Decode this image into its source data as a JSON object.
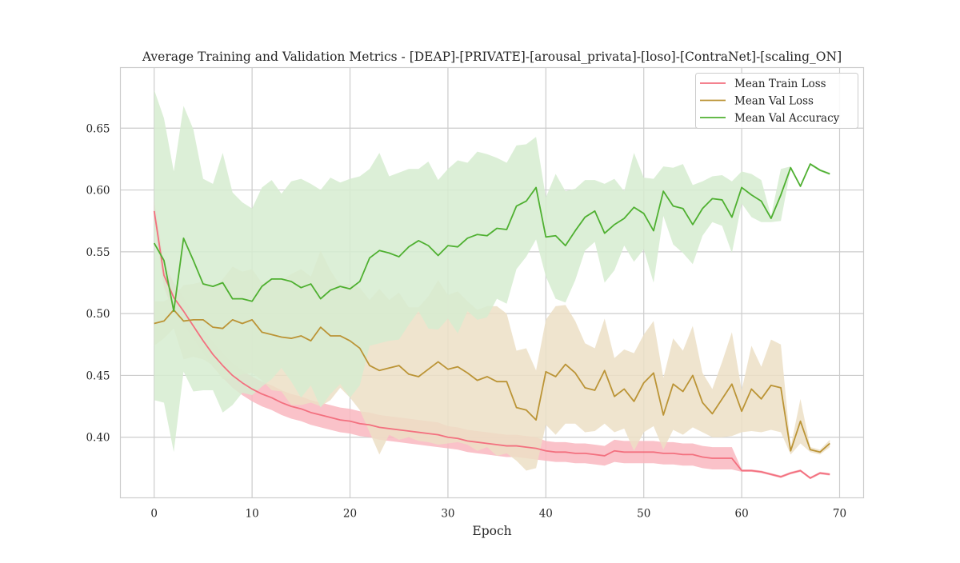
{
  "chart_data": {
    "type": "line",
    "title": "Average Training and Validation Metrics - [DEAP]-[PRIVATE]-[arousal_privata]-[loso]-[ContraNet]-[scaling_ON]",
    "xlabel": "Epoch",
    "ylabel": "",
    "xlim": [
      -3.45,
      72.45
    ],
    "ylim": [
      0.351,
      0.699
    ],
    "xticks": [
      0,
      10,
      20,
      30,
      40,
      50,
      60,
      70
    ],
    "yticks": [
      0.4,
      0.45,
      0.5,
      0.55,
      0.6,
      0.65
    ],
    "xtick_labels": [
      "0",
      "10",
      "20",
      "30",
      "40",
      "50",
      "60",
      "70"
    ],
    "ytick_labels": [
      "0.40",
      "0.45",
      "0.50",
      "0.55",
      "0.60",
      "0.65"
    ],
    "grid": true,
    "legend_position": "top-right",
    "x": [
      0,
      1,
      2,
      3,
      4,
      5,
      6,
      7,
      8,
      9,
      10,
      11,
      12,
      13,
      14,
      15,
      16,
      17,
      18,
      19,
      20,
      21,
      22,
      23,
      24,
      25,
      26,
      27,
      28,
      29,
      30,
      31,
      32,
      33,
      34,
      35,
      36,
      37,
      38,
      39,
      40,
      41,
      42,
      43,
      44,
      45,
      46,
      47,
      48,
      49,
      50,
      51,
      52,
      53,
      54,
      55,
      56,
      57,
      58,
      59,
      60,
      61,
      62,
      63,
      64,
      65,
      66,
      67,
      68,
      69
    ],
    "series": [
      {
        "name": "Mean Train Loss",
        "color": "#f3707f",
        "band_color": "#f9b7c0",
        "values": [
          0.583,
          0.531,
          0.513,
          0.502,
          0.49,
          0.478,
          0.467,
          0.458,
          0.45,
          0.444,
          0.439,
          0.435,
          0.432,
          0.428,
          0.425,
          0.423,
          0.42,
          0.418,
          0.416,
          0.414,
          0.413,
          0.411,
          0.41,
          0.408,
          0.407,
          0.406,
          0.405,
          0.404,
          0.403,
          0.402,
          0.4,
          0.399,
          0.397,
          0.396,
          0.395,
          0.394,
          0.393,
          0.393,
          0.392,
          0.391,
          0.389,
          0.388,
          0.388,
          0.387,
          0.387,
          0.386,
          0.385,
          0.389,
          0.388,
          0.388,
          0.388,
          0.388,
          0.387,
          0.387,
          0.386,
          0.386,
          0.384,
          0.383,
          0.383,
          0.383,
          0.373,
          0.373,
          0.372,
          0.37,
          0.368,
          0.371,
          0.373,
          0.367,
          0.371,
          0.37
        ],
        "band_lower": [
          0.575,
          0.521,
          0.501,
          0.491,
          0.48,
          0.468,
          0.457,
          0.448,
          0.44,
          0.434,
          0.429,
          0.425,
          0.422,
          0.418,
          0.415,
          0.413,
          0.41,
          0.408,
          0.406,
          0.404,
          0.403,
          0.401,
          0.4,
          0.398,
          0.397,
          0.396,
          0.395,
          0.394,
          0.393,
          0.392,
          0.391,
          0.39,
          0.388,
          0.387,
          0.386,
          0.385,
          0.384,
          0.384,
          0.383,
          0.382,
          0.381,
          0.38,
          0.38,
          0.379,
          0.379,
          0.378,
          0.377,
          0.38,
          0.379,
          0.379,
          0.379,
          0.379,
          0.378,
          0.378,
          0.377,
          0.377,
          0.375,
          0.374,
          0.374,
          0.374,
          0.372,
          0.372,
          0.371,
          0.369,
          0.367,
          0.37,
          0.372,
          0.366,
          0.37,
          0.369
        ],
        "band_upper": [
          0.591,
          0.541,
          0.525,
          0.513,
          0.5,
          0.488,
          0.477,
          0.468,
          0.46,
          0.454,
          0.449,
          0.445,
          0.442,
          0.438,
          0.435,
          0.433,
          0.43,
          0.428,
          0.426,
          0.424,
          0.423,
          0.421,
          0.42,
          0.418,
          0.417,
          0.416,
          0.415,
          0.414,
          0.413,
          0.412,
          0.409,
          0.408,
          0.406,
          0.405,
          0.404,
          0.403,
          0.402,
          0.402,
          0.401,
          0.4,
          0.397,
          0.396,
          0.396,
          0.395,
          0.395,
          0.394,
          0.393,
          0.398,
          0.397,
          0.397,
          0.397,
          0.397,
          0.396,
          0.396,
          0.395,
          0.395,
          0.393,
          0.392,
          0.392,
          0.392,
          0.374,
          0.374,
          0.373,
          0.371,
          0.369,
          0.372,
          0.374,
          0.368,
          0.372,
          0.371
        ]
      },
      {
        "name": "Mean Val Loss",
        "color": "#bb9436",
        "band_color": "#ecdfc6",
        "values": [
          0.492,
          0.494,
          0.503,
          0.494,
          0.495,
          0.495,
          0.489,
          0.488,
          0.495,
          0.492,
          0.495,
          0.485,
          0.483,
          0.481,
          0.48,
          0.482,
          0.478,
          0.489,
          0.482,
          0.482,
          0.478,
          0.472,
          0.458,
          0.454,
          0.456,
          0.458,
          0.451,
          0.449,
          0.455,
          0.461,
          0.455,
          0.457,
          0.452,
          0.446,
          0.449,
          0.445,
          0.445,
          0.424,
          0.422,
          0.414,
          0.453,
          0.449,
          0.459,
          0.452,
          0.44,
          0.438,
          0.454,
          0.433,
          0.439,
          0.429,
          0.444,
          0.452,
          0.418,
          0.443,
          0.437,
          0.45,
          0.428,
          0.419,
          0.431,
          0.443,
          0.421,
          0.439,
          0.431,
          0.442,
          0.44,
          0.389,
          0.413,
          0.39,
          0.388,
          0.395
        ],
        "band_lower": [
          0.474,
          0.48,
          0.488,
          0.463,
          0.465,
          0.463,
          0.458,
          0.447,
          0.448,
          0.451,
          0.452,
          0.446,
          0.438,
          0.437,
          0.426,
          0.426,
          0.428,
          0.425,
          0.43,
          0.44,
          0.432,
          0.422,
          0.404,
          0.386,
          0.402,
          0.398,
          0.4,
          0.397,
          0.396,
          0.394,
          0.395,
          0.396,
          0.394,
          0.389,
          0.392,
          0.385,
          0.387,
          0.381,
          0.373,
          0.375,
          0.41,
          0.402,
          0.411,
          0.411,
          0.404,
          0.405,
          0.411,
          0.404,
          0.407,
          0.389,
          0.404,
          0.409,
          0.39,
          0.406,
          0.402,
          0.408,
          0.404,
          0.4,
          0.4,
          0.401,
          0.404,
          0.405,
          0.404,
          0.406,
          0.404,
          0.386,
          0.395,
          0.388,
          0.386,
          0.392
        ],
        "band_upper": [
          0.51,
          0.51,
          0.514,
          0.523,
          0.524,
          0.526,
          0.521,
          0.528,
          0.538,
          0.534,
          0.536,
          0.525,
          0.528,
          0.527,
          0.532,
          0.536,
          0.53,
          0.551,
          0.535,
          0.523,
          0.524,
          0.521,
          0.511,
          0.52,
          0.511,
          0.517,
          0.505,
          0.505,
          0.514,
          0.527,
          0.515,
          0.518,
          0.51,
          0.503,
          0.506,
          0.506,
          0.5,
          0.47,
          0.472,
          0.454,
          0.495,
          0.506,
          0.507,
          0.494,
          0.476,
          0.472,
          0.496,
          0.464,
          0.471,
          0.468,
          0.483,
          0.494,
          0.448,
          0.48,
          0.47,
          0.49,
          0.452,
          0.439,
          0.461,
          0.485,
          0.438,
          0.474,
          0.457,
          0.479,
          0.475,
          0.392,
          0.431,
          0.392,
          0.39,
          0.398
        ]
      },
      {
        "name": "Mean Val Accuracy",
        "color": "#4fb031",
        "band_color": "#d6ecd0",
        "values": [
          0.557,
          0.543,
          0.502,
          0.561,
          0.543,
          0.524,
          0.522,
          0.525,
          0.512,
          0.512,
          0.51,
          0.522,
          0.528,
          0.528,
          0.526,
          0.521,
          0.524,
          0.512,
          0.519,
          0.522,
          0.52,
          0.526,
          0.545,
          0.551,
          0.549,
          0.546,
          0.554,
          0.559,
          0.555,
          0.547,
          0.555,
          0.554,
          0.561,
          0.564,
          0.563,
          0.569,
          0.568,
          0.587,
          0.591,
          0.602,
          0.562,
          0.563,
          0.555,
          0.567,
          0.578,
          0.583,
          0.565,
          0.572,
          0.577,
          0.586,
          0.581,
          0.567,
          0.599,
          0.587,
          0.585,
          0.572,
          0.585,
          0.593,
          0.592,
          0.578,
          0.602,
          0.596,
          0.591,
          0.577,
          0.596,
          0.618,
          0.603,
          0.621,
          0.616,
          0.613
        ],
        "band_lower": [
          0.43,
          0.428,
          0.388,
          0.453,
          0.437,
          0.438,
          0.438,
          0.42,
          0.426,
          0.436,
          0.434,
          0.441,
          0.447,
          0.456,
          0.445,
          0.432,
          0.442,
          0.424,
          0.435,
          0.443,
          0.432,
          0.442,
          0.474,
          0.476,
          0.478,
          0.479,
          0.491,
          0.502,
          0.488,
          0.487,
          0.496,
          0.484,
          0.502,
          0.495,
          0.497,
          0.512,
          0.508,
          0.536,
          0.546,
          0.56,
          0.53,
          0.512,
          0.509,
          0.527,
          0.551,
          0.558,
          0.525,
          0.535,
          0.555,
          0.542,
          0.552,
          0.525,
          0.579,
          0.556,
          0.549,
          0.54,
          0.563,
          0.574,
          0.571,
          0.549,
          0.589,
          0.578,
          0.574,
          0.574,
          0.575,
          0.617,
          0.602,
          0.62,
          0.615,
          0.612
        ],
        "band_upper": [
          0.681,
          0.658,
          0.615,
          0.668,
          0.649,
          0.609,
          0.605,
          0.63,
          0.598,
          0.59,
          0.585,
          0.602,
          0.608,
          0.597,
          0.607,
          0.609,
          0.605,
          0.6,
          0.61,
          0.606,
          0.609,
          0.611,
          0.617,
          0.63,
          0.611,
          0.614,
          0.617,
          0.617,
          0.623,
          0.608,
          0.617,
          0.624,
          0.622,
          0.631,
          0.629,
          0.626,
          0.622,
          0.636,
          0.637,
          0.643,
          0.594,
          0.613,
          0.599,
          0.601,
          0.608,
          0.608,
          0.605,
          0.609,
          0.599,
          0.63,
          0.61,
          0.609,
          0.619,
          0.618,
          0.621,
          0.604,
          0.607,
          0.611,
          0.612,
          0.607,
          0.615,
          0.613,
          0.608,
          0.579,
          0.617,
          0.619,
          0.604,
          0.622,
          0.617,
          0.614
        ]
      }
    ]
  }
}
